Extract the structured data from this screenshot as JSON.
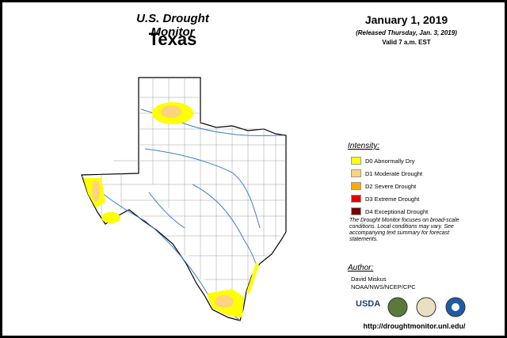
{
  "header": {
    "program": "U.S. Drought Monitor",
    "state": "Texas",
    "date": "January 1, 2019",
    "released": "(Released Thursday, Jan. 3, 2019)",
    "valid": "Valid 7 a.m. EST"
  },
  "legend": {
    "title": "Intensity:",
    "items": [
      {
        "label": "D0 Abnormally Dry",
        "color": "#ffff00"
      },
      {
        "label": "D1 Moderate Drought",
        "color": "#fcd37f"
      },
      {
        "label": "D2 Severe Drought",
        "color": "#ffaa00"
      },
      {
        "label": "D3 Extreme Drought",
        "color": "#e60000"
      },
      {
        "label": "D4 Exceptional Drought",
        "color": "#730000"
      }
    ]
  },
  "note": "The Drought Monitor focuses on broad-scale conditions. Local conditions may vary. See accompanying text summary for forecast statements.",
  "author": {
    "title": "Author:",
    "name": "David Miskus",
    "org": "NOAA/NWS/NCEP/CPC"
  },
  "logos": {
    "usda": "USDA"
  },
  "url": "http://droughtmonitor.unl.edu/"
}
